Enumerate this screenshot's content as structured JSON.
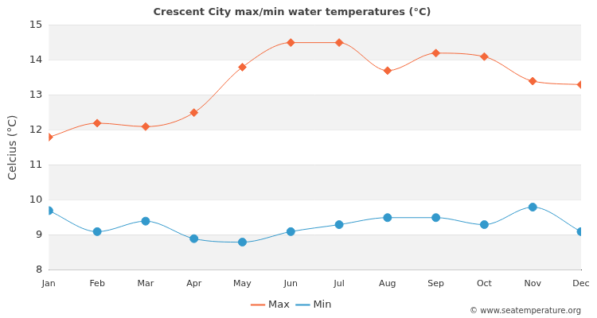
{
  "chart_data": {
    "type": "line",
    "title": "Crescent City max/min water temperatures (°C)",
    "y_label": "Celcius (°C)",
    "categories": [
      "Jan",
      "Feb",
      "Mar",
      "Apr",
      "May",
      "Jun",
      "Jul",
      "Aug",
      "Sep",
      "Oct",
      "Nov",
      "Dec"
    ],
    "series": [
      {
        "name": "Max",
        "color": "#f4683a",
        "marker": "diamond",
        "values": [
          11.8,
          12.2,
          12.1,
          12.5,
          13.8,
          14.5,
          14.5,
          13.7,
          14.2,
          14.1,
          13.4,
          13.3
        ]
      },
      {
        "name": "Min",
        "color": "#3399cc",
        "marker": "circle",
        "values": [
          9.7,
          9.1,
          9.4,
          8.9,
          8.8,
          9.1,
          9.3,
          9.5,
          9.5,
          9.3,
          9.8,
          9.1
        ]
      }
    ],
    "ylim": [
      8,
      15
    ],
    "yticks": [
      8,
      9,
      10,
      11,
      12,
      13,
      14,
      15
    ],
    "grid": true,
    "legend": "bottom",
    "annotations": [
      "© www.seatemperature.org"
    ]
  }
}
